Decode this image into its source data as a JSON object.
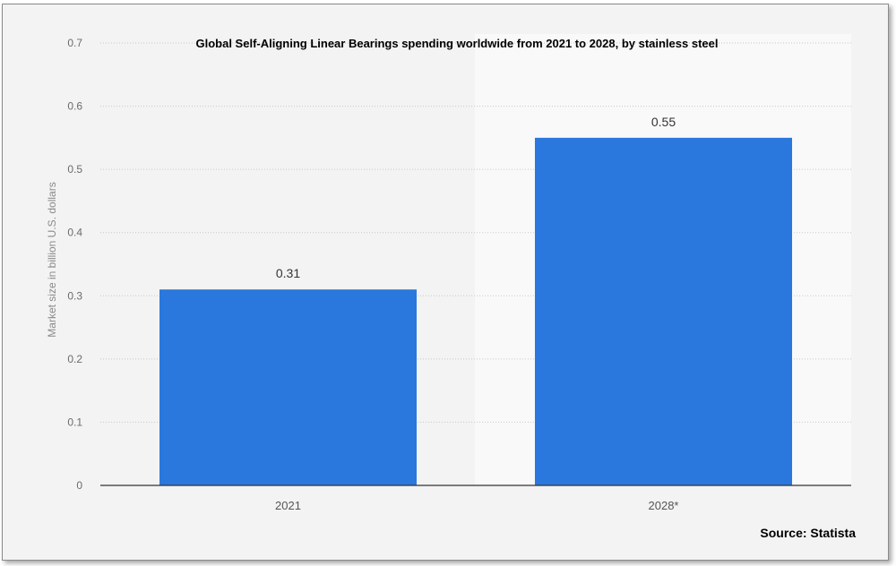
{
  "chart_data": {
    "type": "bar",
    "title": "Global Self-Aligning Linear Bearings spending worldwide from 2021 to 2028, by stainless steel",
    "xlabel": "",
    "ylabel": "Market size in billion U.S. dollars",
    "categories": [
      "2021",
      "2028*"
    ],
    "values": [
      0.31,
      0.55
    ],
    "data_labels": [
      "0.31",
      "0.55"
    ],
    "ylim": [
      0,
      0.7
    ],
    "yticks": [
      "0",
      "0.1",
      "0.2",
      "0.3",
      "0.4",
      "0.5",
      "0.6",
      "0.7"
    ],
    "grid": true,
    "legend": "none",
    "bar_color": "#2a77dd",
    "source": "Source: Statista"
  }
}
